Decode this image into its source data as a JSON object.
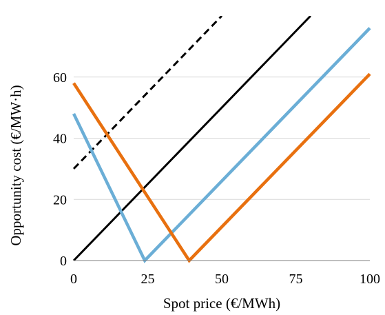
{
  "chart_data": {
    "type": "line",
    "title": "",
    "xlabel": "Spot price (€/MWh)",
    "ylabel": "Opportunity cost (€/MW·h)",
    "xlim": [
      0,
      100
    ],
    "ylim": [
      0,
      80
    ],
    "x_ticks": [
      0,
      25,
      50,
      75,
      100
    ],
    "y_ticks": [
      0,
      20,
      40,
      60
    ],
    "x_tick_labels": [
      "0",
      "25",
      "50",
      "75",
      "100"
    ],
    "y_tick_labels": [
      "0",
      "20",
      "40",
      "60"
    ],
    "grid": "horizontal",
    "legend": "none",
    "series": [
      {
        "color": "#000000",
        "dash": "solid",
        "x": [
          0,
          80
        ],
        "y": [
          0,
          80
        ]
      },
      {
        "color": "#000000",
        "dash": "dashed",
        "x": [
          0,
          50
        ],
        "y": [
          30,
          80
        ]
      },
      {
        "color": "#6baed6",
        "dash": "solid",
        "x": [
          0,
          24,
          100
        ],
        "y": [
          48,
          0,
          76
        ]
      },
      {
        "color": "#e8700f",
        "dash": "solid",
        "x": [
          0,
          39,
          100
        ],
        "y": [
          58,
          0,
          61
        ]
      }
    ]
  }
}
